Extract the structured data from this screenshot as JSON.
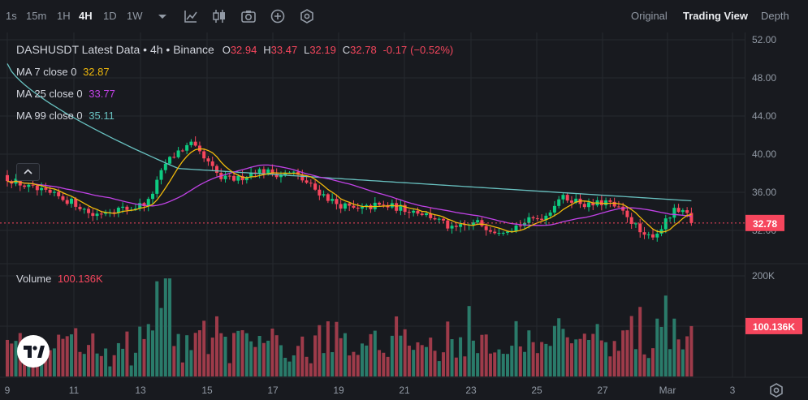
{
  "toolbar": {
    "timeframes": [
      "1s",
      "15m",
      "1H",
      "4H",
      "1D",
      "1W"
    ],
    "active_timeframe": "4H",
    "views": [
      "Original",
      "Trading View",
      "Depth"
    ],
    "active_view": "Trading View",
    "icons": [
      "chevron-down-icon",
      "indicators-icon",
      "chart-type-icon",
      "camera-icon",
      "add-icon",
      "settings-hex-icon"
    ]
  },
  "legend": {
    "symbol": "DASHUSDT Latest Data",
    "interval": "4h",
    "exchange": "Binance",
    "open_label": "O",
    "open": "32.94",
    "high_label": "H",
    "high": "33.47",
    "low_label": "L",
    "low": "32.19",
    "close_label": "C",
    "close": "32.78",
    "change": "-0.17",
    "change_pct": "(−0.52%)",
    "ma7_label": "MA 7 close 0",
    "ma7_value": "32.87",
    "ma25_label": "MA 25 close 0",
    "ma25_value": "33.77",
    "ma99_label": "MA 99 close 0",
    "ma99_value": "35.11",
    "volume_label": "Volume",
    "volume_value": "100.136K"
  },
  "colors": {
    "up": "#0ecb81",
    "down": "#f6465d",
    "vol_up": "#2a7b6a",
    "vol_down": "#9e3b4a",
    "ma7": "#f0b90b",
    "ma25": "#c142e6",
    "ma99": "#68c1c0",
    "grid": "#26292f",
    "axis_text": "#929aa5",
    "background": "#181a1f"
  },
  "chart_data": {
    "type": "candlestick",
    "symbol": "DASHUSDT",
    "interval": "4h",
    "price_axis": {
      "ticks": [
        32,
        36,
        40,
        44,
        48,
        52
      ],
      "tick_labels": [
        "32.00",
        "36.00",
        "40.00",
        "44.00",
        "48.00",
        "52.00"
      ],
      "range": [
        29.5,
        53.2
      ]
    },
    "volume_axis": {
      "ticks": [
        200000
      ],
      "tick_labels": [
        "200K"
      ],
      "range": [
        0,
        220000
      ]
    },
    "x_ticks": [
      "9",
      "11",
      "13",
      "15",
      "17",
      "19",
      "21",
      "23",
      "25",
      "27",
      "Mar",
      "3"
    ],
    "last_price": "32.78",
    "last_volume": "100.136K",
    "anchors": [
      {
        "t": 0,
        "p": 37.5
      },
      {
        "t": 5,
        "p": 36.5
      },
      {
        "t": 12,
        "p": 35.5
      },
      {
        "t": 16,
        "p": 34.8
      },
      {
        "t": 20,
        "p": 33.6
      },
      {
        "t": 24,
        "p": 34.2
      },
      {
        "t": 29,
        "p": 34.3
      },
      {
        "t": 33,
        "p": 35.0
      },
      {
        "t": 37,
        "p": 39.0
      },
      {
        "t": 40,
        "p": 40.3
      },
      {
        "t": 43,
        "p": 41.0
      },
      {
        "t": 47,
        "p": 39.0
      },
      {
        "t": 50,
        "p": 37.4
      },
      {
        "t": 54,
        "p": 37.4
      },
      {
        "t": 58,
        "p": 38.3
      },
      {
        "t": 64,
        "p": 37.9
      },
      {
        "t": 67,
        "p": 38.0
      },
      {
        "t": 72,
        "p": 36.3
      },
      {
        "t": 77,
        "p": 34.8
      },
      {
        "t": 82,
        "p": 34.1
      },
      {
        "t": 86,
        "p": 34.6
      },
      {
        "t": 90,
        "p": 34.5
      },
      {
        "t": 96,
        "p": 34.0
      },
      {
        "t": 100,
        "p": 33.3
      },
      {
        "t": 104,
        "p": 32.1
      },
      {
        "t": 110,
        "p": 32.8
      },
      {
        "t": 114,
        "p": 32.0
      },
      {
        "t": 118,
        "p": 32.3
      },
      {
        "t": 122,
        "p": 33.0
      },
      {
        "t": 126,
        "p": 33.6
      },
      {
        "t": 129,
        "p": 35.4
      },
      {
        "t": 132,
        "p": 35.3
      },
      {
        "t": 136,
        "p": 34.6
      },
      {
        "t": 140,
        "p": 35.0
      },
      {
        "t": 145,
        "p": 33.6
      },
      {
        "t": 149,
        "p": 31.2
      },
      {
        "t": 152,
        "p": 31.8
      },
      {
        "t": 156,
        "p": 34.0
      },
      {
        "t": 159,
        "p": 33.6
      },
      {
        "t": 160,
        "p": 32.78
      }
    ]
  }
}
